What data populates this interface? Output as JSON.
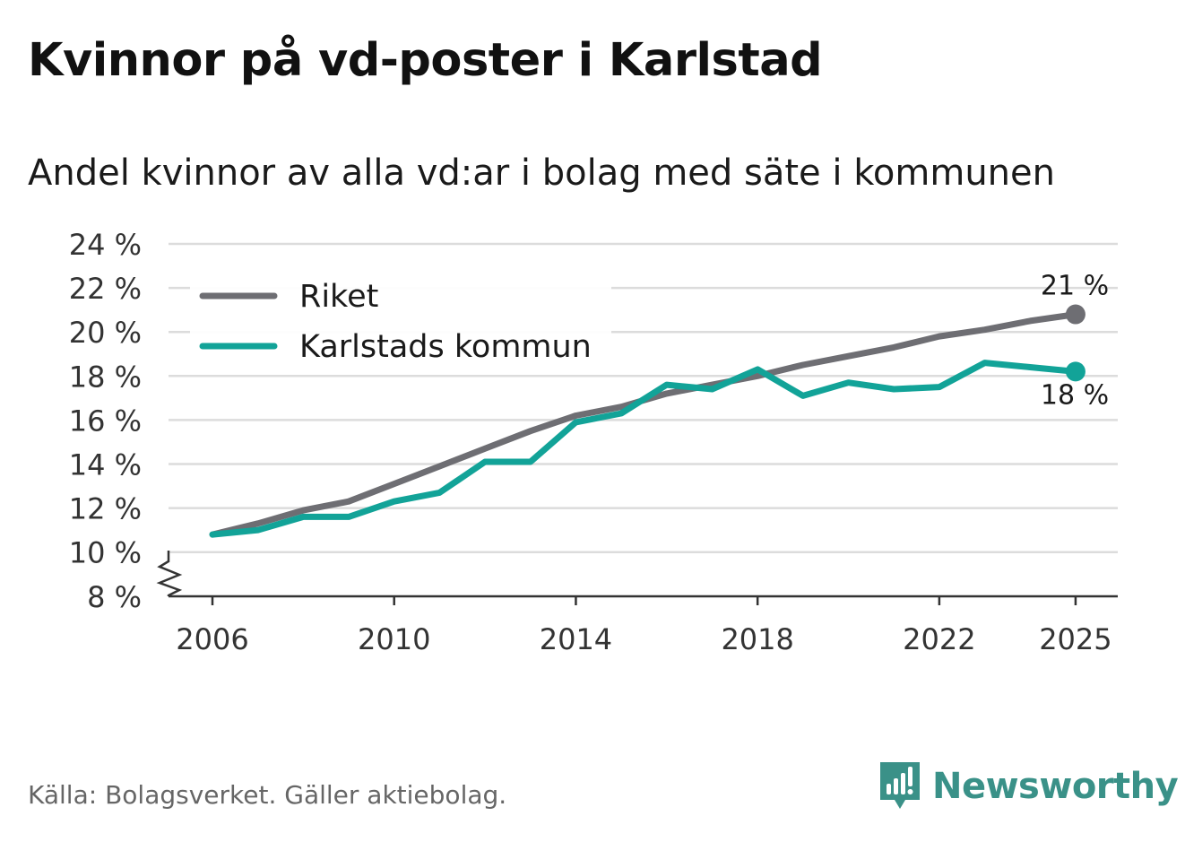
{
  "header": {
    "title": "Kvinnor på vd-poster i Karlstad",
    "subtitle": "Andel kvinnor av alla vd:ar i bolag med säte i kommunen"
  },
  "footer": {
    "source": "Källa: Bolagsverket. Gäller aktiebolag.",
    "brand": "Newsworthy",
    "brand_color": "#3a9188"
  },
  "chart_data": {
    "type": "line",
    "title": "Kvinnor på vd-poster i Karlstad",
    "subtitle": "Andel kvinnor av alla vd:ar i bolag med säte i kommunen",
    "xlabel": "",
    "ylabel": "",
    "x": [
      2006,
      2007,
      2008,
      2009,
      2010,
      2011,
      2012,
      2013,
      2014,
      2015,
      2016,
      2017,
      2018,
      2019,
      2020,
      2021,
      2022,
      2023,
      2024,
      2025
    ],
    "x_ticks": [
      2006,
      2010,
      2014,
      2018,
      2022,
      2025
    ],
    "x_tick_labels": [
      "2006",
      "2010",
      "2014",
      "2018",
      "2022",
      "2025"
    ],
    "ylim": [
      8,
      24
    ],
    "y_axis_break": true,
    "y_ticks": [
      8,
      10,
      12,
      14,
      16,
      18,
      20,
      22,
      24
    ],
    "y_tick_labels": [
      "8 %",
      "10 %",
      "12 %",
      "14 %",
      "16 %",
      "18 %",
      "20 %",
      "22 %",
      "24 %"
    ],
    "grid": true,
    "legend_position": "top-left",
    "series": [
      {
        "name": "Riket",
        "color": "#6e6e73",
        "values": [
          10.8,
          11.3,
          11.9,
          12.3,
          13.1,
          13.9,
          14.7,
          15.5,
          16.2,
          16.6,
          17.2,
          17.6,
          18.0,
          18.5,
          18.9,
          19.3,
          19.8,
          20.1,
          20.5,
          20.8
        ],
        "end_label": "21 %"
      },
      {
        "name": "Karlstads kommun",
        "color": "#12a398",
        "values": [
          10.8,
          11.0,
          11.6,
          11.6,
          12.3,
          12.7,
          14.1,
          14.1,
          15.9,
          16.3,
          17.6,
          17.4,
          18.3,
          17.1,
          17.7,
          17.4,
          17.5,
          18.6,
          18.4,
          18.2
        ],
        "end_label": "18 %"
      }
    ]
  }
}
